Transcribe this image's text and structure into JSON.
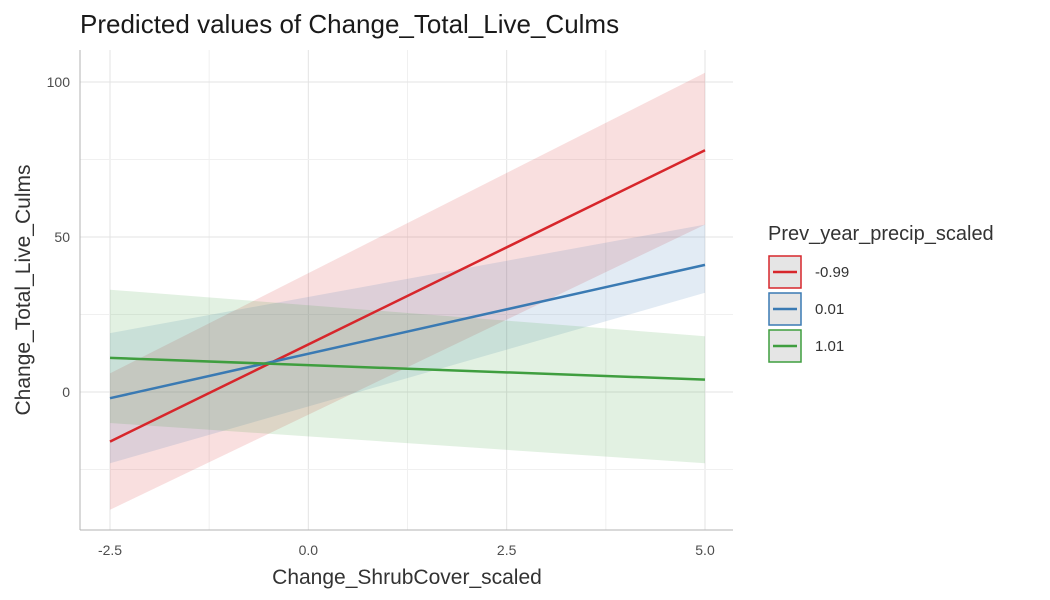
{
  "chart_data": {
    "type": "line",
    "title": "Predicted values of Change_Total_Live_Culms",
    "xlabel": "Change_ShrubCover_scaled",
    "ylabel": "Change_Total_Live_Culms",
    "xlim": [
      -2.7,
      5.3
    ],
    "ylim": [
      -44,
      105
    ],
    "x_ticks": [
      -2.5,
      0.0,
      2.5,
      5.0
    ],
    "x_tick_labels": [
      "-2.5",
      "0.0",
      "2.5",
      "5.0"
    ],
    "y_ticks": [
      0,
      50,
      100
    ],
    "y_tick_labels": [
      "0",
      "50",
      "100"
    ],
    "grid": true,
    "legend": {
      "title": "Prev_year_precip_scaled",
      "placement": "right"
    },
    "series": [
      {
        "name": "-0.99",
        "color": "#d7262b",
        "x": [
          -2.5,
          5.0
        ],
        "values": [
          -16,
          78
        ],
        "ci_low": [
          -38,
          54
        ],
        "ci_high": [
          6,
          103
        ]
      },
      {
        "name": "0.01",
        "color": "#3a7ab3",
        "x": [
          -2.5,
          5.0
        ],
        "values": [
          -2,
          41
        ],
        "ci_low": [
          -23,
          32
        ],
        "ci_high": [
          19,
          54
        ]
      },
      {
        "name": "1.01",
        "color": "#3f9e3f",
        "x": [
          -2.5,
          5.0
        ],
        "values": [
          11,
          4
        ],
        "ci_low": [
          -10,
          -23
        ],
        "ci_high": [
          33,
          18
        ]
      }
    ]
  }
}
